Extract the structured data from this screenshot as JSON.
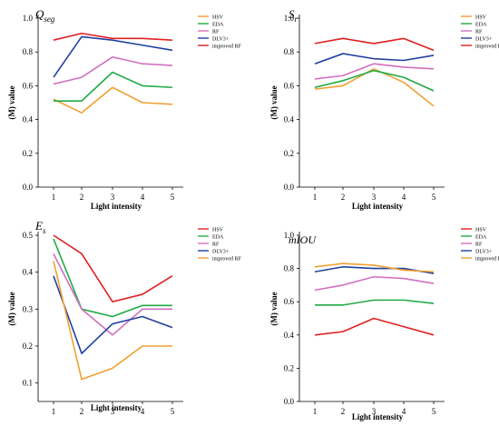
{
  "figure": {
    "charts": [
      {
        "id": "qseg",
        "title_main": "Q",
        "title_sub": "seg",
        "legend": [
          "HSV",
          "EDA",
          "RF",
          "DLV3+",
          "improved RF"
        ],
        "colors": [
          "#f0a030",
          "#22aa44",
          "#d070c0",
          "#2040a0",
          "#e02020"
        ]
      },
      {
        "id": "sr",
        "title_main": "S",
        "title_sub": "r",
        "legend": [
          "HSV",
          "EDA",
          "RF",
          "DLV3+",
          "improved RF"
        ],
        "colors": [
          "#f0a030",
          "#22aa44",
          "#d070c0",
          "#2040a0",
          "#e02020"
        ]
      },
      {
        "id": "es",
        "title_main": "E",
        "title_sub": "s",
        "legend": [
          "HSV",
          "EDA",
          "RF",
          "DLV3+",
          "improved RF"
        ],
        "colors": [
          "#e02020",
          "#22aa44",
          "#d070c0",
          "#2040a0",
          "#f0a030"
        ]
      },
      {
        "id": "miou",
        "title_main": "mIOU",
        "title_sub": "",
        "legend": [
          "HSV",
          "EDA",
          "RF",
          "DLV3+",
          "improved RF"
        ],
        "colors": [
          "#e02020",
          "#22aa44",
          "#d070c0",
          "#2040a0",
          "#f0a030"
        ]
      }
    ]
  },
  "chart_data": [
    {
      "type": "line",
      "title": "Qseg",
      "xlabel": "Light intensity",
      "ylabel": "(M) value",
      "x": [
        1,
        2,
        3,
        4,
        5
      ],
      "ylim": [
        0.0,
        1.0
      ],
      "yticks": [
        "0.0",
        "0.2",
        "0.4",
        "0.6",
        "0.8",
        "1.0"
      ],
      "legend_position": "top-right",
      "series": [
        {
          "name": "HSV",
          "values": [
            0.52,
            0.44,
            0.59,
            0.5,
            0.49
          ]
        },
        {
          "name": "EDA",
          "values": [
            0.51,
            0.51,
            0.68,
            0.6,
            0.59
          ]
        },
        {
          "name": "RF",
          "values": [
            0.61,
            0.65,
            0.77,
            0.73,
            0.72
          ]
        },
        {
          "name": "DLV3+",
          "values": [
            0.65,
            0.89,
            0.87,
            0.84,
            0.81
          ]
        },
        {
          "name": "improved RF",
          "values": [
            0.87,
            0.91,
            0.88,
            0.88,
            0.87
          ]
        }
      ]
    },
    {
      "type": "line",
      "title": "Sr",
      "xlabel": "Light intensity",
      "ylabel": "(M) value",
      "x": [
        1,
        2,
        3,
        4,
        5
      ],
      "ylim": [
        0.0,
        1.0
      ],
      "yticks": [
        "0.0",
        "0.2",
        "0.4",
        "0.6",
        "0.8",
        "1.0"
      ],
      "legend_position": "top-right",
      "series": [
        {
          "name": "HSV",
          "values": [
            0.58,
            0.6,
            0.7,
            0.62,
            0.48
          ]
        },
        {
          "name": "EDA",
          "values": [
            0.59,
            0.63,
            0.69,
            0.65,
            0.57
          ]
        },
        {
          "name": "RF",
          "values": [
            0.64,
            0.66,
            0.73,
            0.71,
            0.7
          ]
        },
        {
          "name": "DLV3+",
          "values": [
            0.73,
            0.79,
            0.76,
            0.75,
            0.78
          ]
        },
        {
          "name": "improved RF",
          "values": [
            0.85,
            0.88,
            0.85,
            0.88,
            0.81
          ]
        }
      ]
    },
    {
      "type": "line",
      "title": "Es",
      "xlabel": "Light intensity",
      "ylabel": "(M) value",
      "x": [
        1,
        2,
        3,
        4,
        5
      ],
      "ylim": [
        0.05,
        0.5
      ],
      "yticks": [
        "0.1",
        "0.2",
        "0.3",
        "0.4",
        "0.5"
      ],
      "legend_position": "top-right",
      "series": [
        {
          "name": "HSV",
          "values": [
            0.5,
            0.45,
            0.32,
            0.34,
            0.39
          ]
        },
        {
          "name": "EDA",
          "values": [
            0.49,
            0.3,
            0.28,
            0.31,
            0.31
          ]
        },
        {
          "name": "RF",
          "values": [
            0.45,
            0.3,
            0.23,
            0.3,
            0.3
          ]
        },
        {
          "name": "DLV3+",
          "values": [
            0.39,
            0.18,
            0.26,
            0.28,
            0.25
          ]
        },
        {
          "name": "improved RF",
          "values": [
            0.43,
            0.11,
            0.14,
            0.2,
            0.2
          ]
        }
      ]
    },
    {
      "type": "line",
      "title": "mIOU",
      "xlabel": "Light intensity",
      "ylabel": "(M) value",
      "x": [
        1,
        2,
        3,
        4,
        5
      ],
      "ylim": [
        0.0,
        1.0
      ],
      "yticks": [
        "0.0",
        "0.2",
        "0.4",
        "0.6",
        "0.8",
        "1.0"
      ],
      "legend_position": "top-right",
      "series": [
        {
          "name": "HSV",
          "values": [
            0.4,
            0.42,
            0.5,
            0.45,
            0.4
          ]
        },
        {
          "name": "EDA",
          "values": [
            0.58,
            0.58,
            0.61,
            0.61,
            0.59
          ]
        },
        {
          "name": "RF",
          "values": [
            0.67,
            0.7,
            0.75,
            0.74,
            0.71
          ]
        },
        {
          "name": "DLV3+",
          "values": [
            0.78,
            0.81,
            0.8,
            0.8,
            0.77
          ]
        },
        {
          "name": "improved RF",
          "values": [
            0.81,
            0.83,
            0.82,
            0.79,
            0.78
          ]
        }
      ]
    }
  ]
}
